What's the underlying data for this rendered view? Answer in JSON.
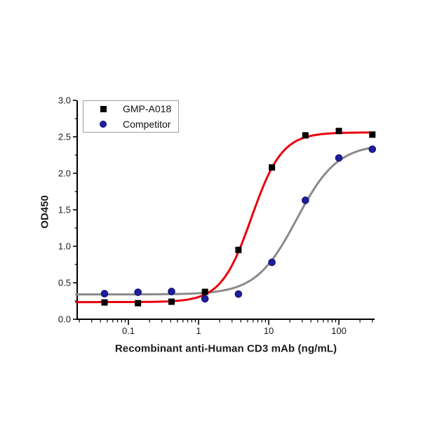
{
  "chart_data": {
    "type": "scatter",
    "subtype": "dose-response-curve-4pl-fit",
    "title": "",
    "xlabel": "Recombinant anti-Human CD3 mAb (ng/mL)",
    "ylabel": "OD450",
    "x_scale": "log10",
    "xlim": [
      0.018,
      320
    ],
    "ylim": [
      0,
      3
    ],
    "grid": false,
    "legend_position": "top-left-inside",
    "axis_color": "#000000",
    "text_color": "#1a1a1a",
    "x_major_ticks": [
      0.1,
      1,
      10,
      100
    ],
    "x_major_tick_labels": [
      "0.1",
      "1",
      "10",
      "100"
    ],
    "y_major_ticks": [
      0,
      0.5,
      1,
      1.5,
      2,
      2.5,
      3
    ],
    "y_major_tick_labels": [
      "0.0",
      "0.5",
      "1.0",
      "1.5",
      "2.0",
      "2.5",
      "3.0"
    ],
    "y_minor_ticks": [
      0.25,
      0.75,
      1.25,
      1.75,
      2.25,
      2.75
    ],
    "series": [
      {
        "name": "GMP-A018",
        "marker": "square",
        "marker_color": "#000000",
        "marker_edge_color": "#000000",
        "curve_color": "#e8000d",
        "x": [
          0.0457,
          0.137,
          0.412,
          1.235,
          3.704,
          11.11,
          33.33,
          100,
          300
        ],
        "y": [
          0.23,
          0.22,
          0.24,
          0.375,
          0.95,
          2.08,
          2.52,
          2.58,
          2.53
        ],
        "fit_4pl": {
          "bottom": 0.235,
          "top": 2.56,
          "ec50": 5.7,
          "hill": 2.0,
          "draw_from": 0.018,
          "draw_to": 318
        }
      },
      {
        "name": "Competitor",
        "marker": "circle",
        "marker_color": "#1e1e9c",
        "marker_edge_color": "#0d0d70",
        "curve_color": "#8a8a8a",
        "x": [
          0.0457,
          0.137,
          0.412,
          1.235,
          3.704,
          11.11,
          33.33,
          100,
          300
        ],
        "y": [
          0.35,
          0.37,
          0.38,
          0.28,
          0.345,
          0.78,
          1.63,
          2.21,
          2.33
        ],
        "fit_4pl": {
          "bottom": 0.34,
          "top": 2.4,
          "ec50": 25,
          "hill": 1.5,
          "draw_from": 0.018,
          "draw_to": 300
        }
      }
    ]
  }
}
